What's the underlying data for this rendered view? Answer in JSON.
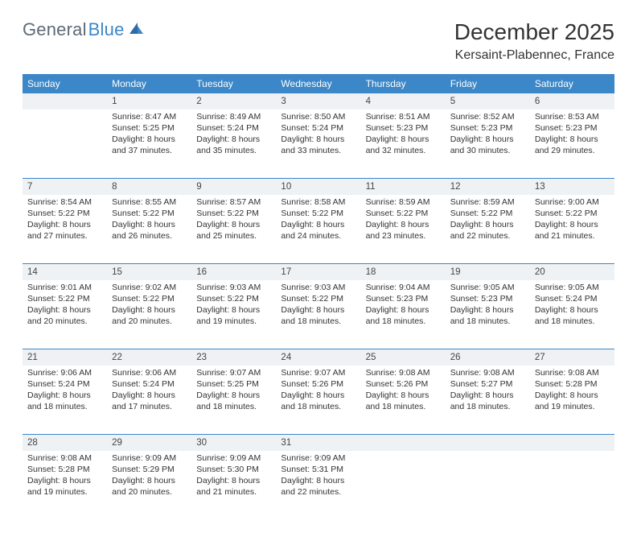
{
  "logo": {
    "text1": "General",
    "text2": "Blue"
  },
  "title": "December 2025",
  "location": "Kersaint-Plabennec, France",
  "colors": {
    "header_bg": "#3b87c8",
    "header_fg": "#ffffff",
    "daynum_bg": "#eef2f5",
    "row_divider": "#3b87c8",
    "text": "#333333",
    "logo_gray": "#5e6a74",
    "logo_blue": "#3b87c8",
    "page_bg": "#ffffff"
  },
  "weekdays": [
    "Sunday",
    "Monday",
    "Tuesday",
    "Wednesday",
    "Thursday",
    "Friday",
    "Saturday"
  ],
  "weeks": [
    [
      null,
      {
        "n": "1",
        "sr": "8:47 AM",
        "ss": "5:25 PM",
        "dl": "8 hours and 37 minutes."
      },
      {
        "n": "2",
        "sr": "8:49 AM",
        "ss": "5:24 PM",
        "dl": "8 hours and 35 minutes."
      },
      {
        "n": "3",
        "sr": "8:50 AM",
        "ss": "5:24 PM",
        "dl": "8 hours and 33 minutes."
      },
      {
        "n": "4",
        "sr": "8:51 AM",
        "ss": "5:23 PM",
        "dl": "8 hours and 32 minutes."
      },
      {
        "n": "5",
        "sr": "8:52 AM",
        "ss": "5:23 PM",
        "dl": "8 hours and 30 minutes."
      },
      {
        "n": "6",
        "sr": "8:53 AM",
        "ss": "5:23 PM",
        "dl": "8 hours and 29 minutes."
      }
    ],
    [
      {
        "n": "7",
        "sr": "8:54 AM",
        "ss": "5:22 PM",
        "dl": "8 hours and 27 minutes."
      },
      {
        "n": "8",
        "sr": "8:55 AM",
        "ss": "5:22 PM",
        "dl": "8 hours and 26 minutes."
      },
      {
        "n": "9",
        "sr": "8:57 AM",
        "ss": "5:22 PM",
        "dl": "8 hours and 25 minutes."
      },
      {
        "n": "10",
        "sr": "8:58 AM",
        "ss": "5:22 PM",
        "dl": "8 hours and 24 minutes."
      },
      {
        "n": "11",
        "sr": "8:59 AM",
        "ss": "5:22 PM",
        "dl": "8 hours and 23 minutes."
      },
      {
        "n": "12",
        "sr": "8:59 AM",
        "ss": "5:22 PM",
        "dl": "8 hours and 22 minutes."
      },
      {
        "n": "13",
        "sr": "9:00 AM",
        "ss": "5:22 PM",
        "dl": "8 hours and 21 minutes."
      }
    ],
    [
      {
        "n": "14",
        "sr": "9:01 AM",
        "ss": "5:22 PM",
        "dl": "8 hours and 20 minutes."
      },
      {
        "n": "15",
        "sr": "9:02 AM",
        "ss": "5:22 PM",
        "dl": "8 hours and 20 minutes."
      },
      {
        "n": "16",
        "sr": "9:03 AM",
        "ss": "5:22 PM",
        "dl": "8 hours and 19 minutes."
      },
      {
        "n": "17",
        "sr": "9:03 AM",
        "ss": "5:22 PM",
        "dl": "8 hours and 18 minutes."
      },
      {
        "n": "18",
        "sr": "9:04 AM",
        "ss": "5:23 PM",
        "dl": "8 hours and 18 minutes."
      },
      {
        "n": "19",
        "sr": "9:05 AM",
        "ss": "5:23 PM",
        "dl": "8 hours and 18 minutes."
      },
      {
        "n": "20",
        "sr": "9:05 AM",
        "ss": "5:24 PM",
        "dl": "8 hours and 18 minutes."
      }
    ],
    [
      {
        "n": "21",
        "sr": "9:06 AM",
        "ss": "5:24 PM",
        "dl": "8 hours and 18 minutes."
      },
      {
        "n": "22",
        "sr": "9:06 AM",
        "ss": "5:24 PM",
        "dl": "8 hours and 17 minutes."
      },
      {
        "n": "23",
        "sr": "9:07 AM",
        "ss": "5:25 PM",
        "dl": "8 hours and 18 minutes."
      },
      {
        "n": "24",
        "sr": "9:07 AM",
        "ss": "5:26 PM",
        "dl": "8 hours and 18 minutes."
      },
      {
        "n": "25",
        "sr": "9:08 AM",
        "ss": "5:26 PM",
        "dl": "8 hours and 18 minutes."
      },
      {
        "n": "26",
        "sr": "9:08 AM",
        "ss": "5:27 PM",
        "dl": "8 hours and 18 minutes."
      },
      {
        "n": "27",
        "sr": "9:08 AM",
        "ss": "5:28 PM",
        "dl": "8 hours and 19 minutes."
      }
    ],
    [
      {
        "n": "28",
        "sr": "9:08 AM",
        "ss": "5:28 PM",
        "dl": "8 hours and 19 minutes."
      },
      {
        "n": "29",
        "sr": "9:09 AM",
        "ss": "5:29 PM",
        "dl": "8 hours and 20 minutes."
      },
      {
        "n": "30",
        "sr": "9:09 AM",
        "ss": "5:30 PM",
        "dl": "8 hours and 21 minutes."
      },
      {
        "n": "31",
        "sr": "9:09 AM",
        "ss": "5:31 PM",
        "dl": "8 hours and 22 minutes."
      },
      null,
      null,
      null
    ]
  ],
  "labels": {
    "sunrise": "Sunrise:",
    "sunset": "Sunset:",
    "daylight": "Daylight:"
  }
}
